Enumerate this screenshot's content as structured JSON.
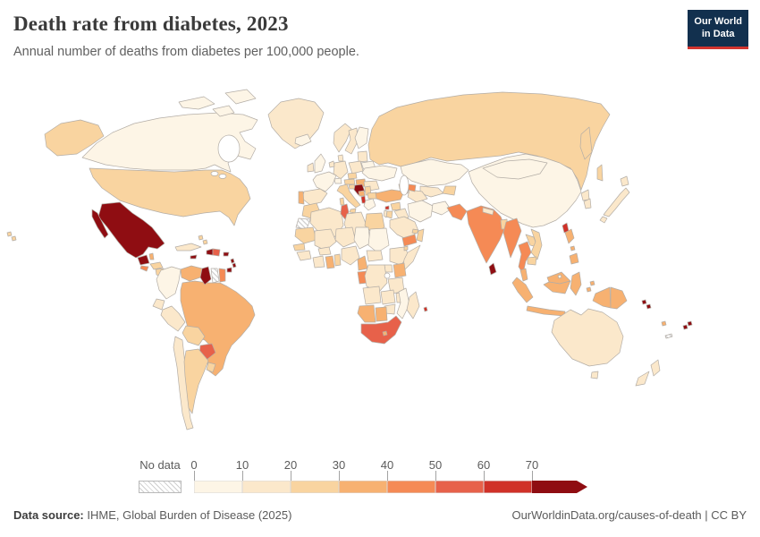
{
  "header": {
    "title": "Death rate from diabetes, 2023",
    "subtitle": "Annual number of deaths from diabetes per 100,000 people.",
    "logo": {
      "line1": "Our World",
      "line2": "in Data",
      "bg_color": "#12304e",
      "accent_color": "#d2352f",
      "text_color": "#ffffff"
    }
  },
  "legend": {
    "no_data_label": "No data",
    "ticks": [
      "0",
      "10",
      "20",
      "30",
      "40",
      "50",
      "60",
      "70"
    ],
    "bin_colors": [
      "#fdf5e6",
      "#fbe8cb",
      "#f9d4a0",
      "#f7b171",
      "#f58a55",
      "#e7614a",
      "#d03128",
      "#8f0d12"
    ],
    "tick_color": "#a3a3a3",
    "label_color": "#5b5b5b"
  },
  "map": {
    "border_color": "#b3ada6",
    "ocean_color": "#ffffff"
  },
  "footer": {
    "source_label": "Data source:",
    "source_text": " IHME, Global Burden of Disease (2025)",
    "right_text": "OurWorldinData.org/causes-of-death | CC BY"
  },
  "chart_data": {
    "type": "heatmap",
    "subtype": "world-choropleth",
    "title": "Death rate from diabetes, 2023",
    "unit": "annual deaths from diabetes per 100,000 people",
    "year": "2023",
    "bin_ranges": [
      "0-10",
      "10-20",
      "20-30",
      "30-40",
      "40-50",
      "50-60",
      "60-70",
      "70+"
    ],
    "no_data_bin": 0,
    "note": "country values are legend bin indices 1-8; 0 = no data",
    "countries": {
      "canada": 1,
      "usa": 3,
      "greenland": 2,
      "iceland": 1,
      "mexico": 8,
      "guatemala": 8,
      "belize": 4,
      "honduras": 3,
      "el_salvador": 5,
      "nicaragua": 3,
      "costa_rica": 4,
      "panama": 4,
      "cuba": 2,
      "jamaica": 8,
      "haiti": 8,
      "dominican_republic": 6,
      "puerto_rico": 8,
      "bahamas": 3,
      "lesser_antilles": 8,
      "trinidad_and_tobago": 8,
      "colombia": 1,
      "venezuela": 4,
      "guyana": 8,
      "suriname": 0,
      "french_guiana": 5,
      "ecuador": 2,
      "peru": 2,
      "brazil": 4,
      "bolivia": 3,
      "paraguay": 6,
      "chile": 2,
      "argentina": 3,
      "uruguay": 3,
      "uk": 1,
      "ireland": 2,
      "norway": 2,
      "sweden": 2,
      "finland": 1,
      "denmark": 2,
      "baltic_states": 2,
      "belarus": 1,
      "poland": 2,
      "germany": 2,
      "netherlands": 2,
      "france": 1,
      "spain": 2,
      "portugal": 4,
      "switzerland": 1,
      "czechia": 3,
      "austria": 3,
      "hungary": 4,
      "slovenia": 3,
      "croatia": 8,
      "bosnia_and_herzegovina": 4,
      "serbia": 3,
      "albania": 7,
      "greece": 1,
      "bulgaria": 3,
      "romania": 2,
      "ukraine": 1,
      "italy": 3,
      "russia": 3,
      "kazakhstan": 1,
      "uzbekistan": 2,
      "turkmenistan": 2,
      "kyrgyzstan": 3,
      "china": 1,
      "mongolia": 1,
      "turkey": 4,
      "cyprus": 7,
      "georgia": 3,
      "azerbaijan": 5,
      "armenia": 4,
      "syria": 3,
      "iraq": 2,
      "jordan": 3,
      "israel": 2,
      "iran": 1,
      "afghanistan": 1,
      "saudi_arabia": 2,
      "yemen": 5,
      "oman": 3,
      "uae": 3,
      "pakistan": 5,
      "india": 5,
      "nepal": 2,
      "bangladesh": 3,
      "sri_lanka": 8,
      "myanmar": 5,
      "thailand": 5,
      "laos": 3,
      "vietnam": 3,
      "cambodia": 3,
      "malaysia": 4,
      "brunei": 1,
      "indonesia": 4,
      "philippines": 4,
      "taiwan": 7,
      "north_korea": 2,
      "south_korea": 2,
      "japan": 2,
      "morocco": 3,
      "western_sahara": 0,
      "algeria": 2,
      "tunisia": 6,
      "libya": 2,
      "egypt": 3,
      "mauritania": 3,
      "senegal": 3,
      "guinea": 2,
      "mali": 2,
      "burkina_faso": 2,
      "cote_divoire": 2,
      "ghana": 4,
      "benin": 3,
      "niger": 2,
      "nigeria": 2,
      "chad": 1,
      "sudan": 1,
      "cameroon": 4,
      "central_african_republic": 2,
      "ethiopia": 2,
      "djibouti": 3,
      "somalia": 2,
      "uganda": 2,
      "kenya": 4,
      "gabon": 5,
      "drc": 2,
      "tanzania": 2,
      "angola": 2,
      "zambia": 2,
      "malawi": 2,
      "mozambique": 1,
      "zimbabwe": 2,
      "namibia": 4,
      "botswana": 4,
      "south_africa": 6,
      "lesotho": 4,
      "madagascar": 2,
      "mauritius": 7,
      "australia": 2,
      "new_zealand": 2,
      "papua_new_guinea": 4,
      "solomon_islands": 8,
      "vanuatu": 4,
      "new_caledonia": 0,
      "fiji": 8
    }
  }
}
